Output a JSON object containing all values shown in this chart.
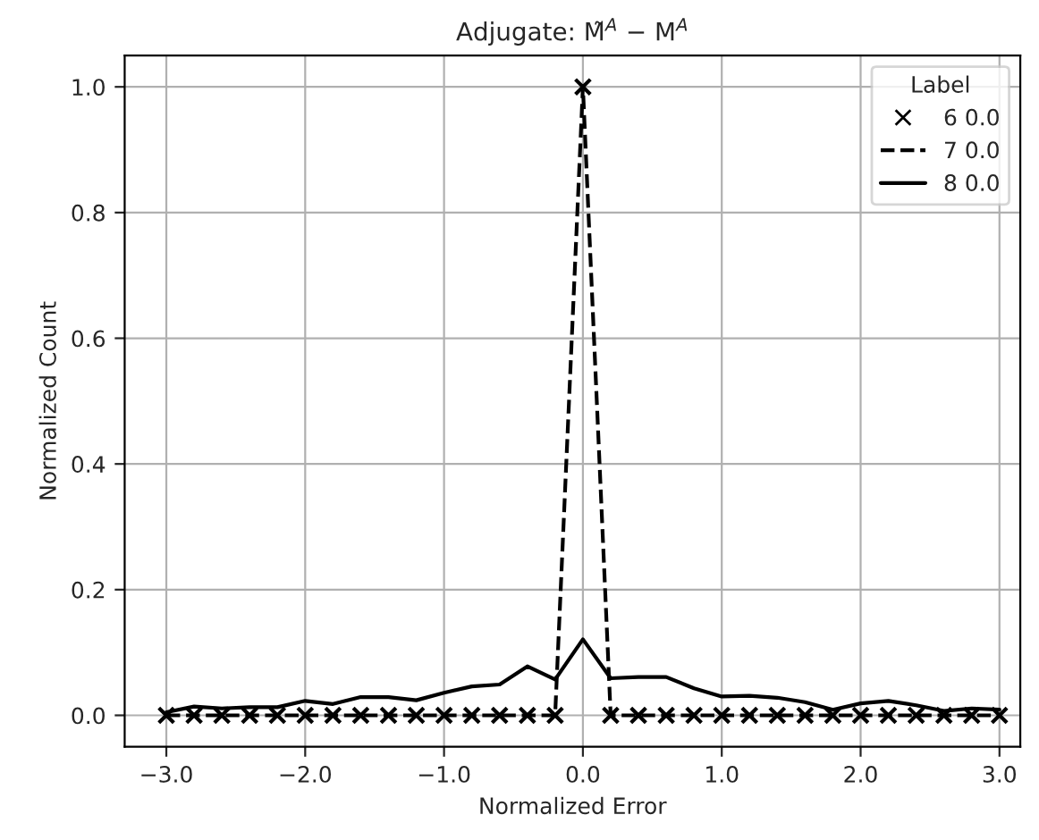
{
  "chart_data": {
    "type": "line",
    "title": "Adjugate: M̃$^{A}$ − M$^{A}$",
    "xlabel": "Normalized Error",
    "ylabel": "Normalized Count",
    "legend_title": "Label",
    "x": [
      -3.0,
      -2.8,
      -2.6,
      -2.4,
      -2.2,
      -2.0,
      -1.8,
      -1.6,
      -1.4,
      -1.2,
      -1.0,
      -0.8,
      -0.6,
      -0.4,
      -0.2,
      0.0,
      0.2,
      0.4,
      0.6,
      0.8,
      1.0,
      1.2,
      1.4,
      1.6,
      1.8,
      2.0,
      2.2,
      2.4,
      2.6,
      2.8,
      3.0
    ],
    "series": [
      {
        "name": "6 0.0",
        "type": "scatter",
        "marker": "cross",
        "color": "#000000",
        "values": [
          0,
          0,
          0,
          0,
          0,
          0,
          0,
          0,
          0,
          0,
          0,
          0,
          0,
          0,
          0,
          1.0,
          0,
          0,
          0,
          0,
          0,
          0,
          0,
          0,
          0,
          0,
          0,
          0,
          0,
          0,
          0
        ]
      },
      {
        "name": "7 0.0",
        "line_style": "dashed",
        "color": "#000000",
        "values": [
          0,
          0,
          0,
          0,
          0,
          0,
          0,
          0,
          0,
          0,
          0,
          0,
          0,
          0,
          0,
          1.0,
          0,
          0,
          0,
          0,
          0,
          0,
          0,
          0,
          0,
          0,
          0,
          0,
          0,
          0,
          0
        ]
      },
      {
        "name": "8 0.0",
        "line_style": "solid",
        "color": "#000000",
        "values": [
          0.005,
          0.014,
          0.011,
          0.013,
          0.013,
          0.023,
          0.018,
          0.029,
          0.029,
          0.024,
          0.036,
          0.046,
          0.049,
          0.078,
          0.057,
          0.121,
          0.059,
          0.061,
          0.061,
          0.043,
          0.03,
          0.031,
          0.028,
          0.021,
          0.009,
          0.019,
          0.023,
          0.016,
          0.007,
          0.011,
          0.009
        ]
      }
    ],
    "xlim": [
      -3.3,
      3.15
    ],
    "ylim": [
      -0.05,
      1.05
    ],
    "xticks": [
      {
        "value": -3,
        "label": "−3.0"
      },
      {
        "value": -2,
        "label": "−2.0"
      },
      {
        "value": -1,
        "label": "−1.0"
      },
      {
        "value": 0,
        "label": "0.0"
      },
      {
        "value": 1,
        "label": "1.0"
      },
      {
        "value": 2,
        "label": "2.0"
      },
      {
        "value": 3,
        "label": "3.0"
      }
    ],
    "yticks": [
      {
        "value": 0,
        "label": "0.0"
      },
      0.2,
      0.4,
      0.6,
      0.8,
      {
        "value": 1,
        "label": "1.0"
      }
    ],
    "grid": true,
    "legend": "top right"
  }
}
